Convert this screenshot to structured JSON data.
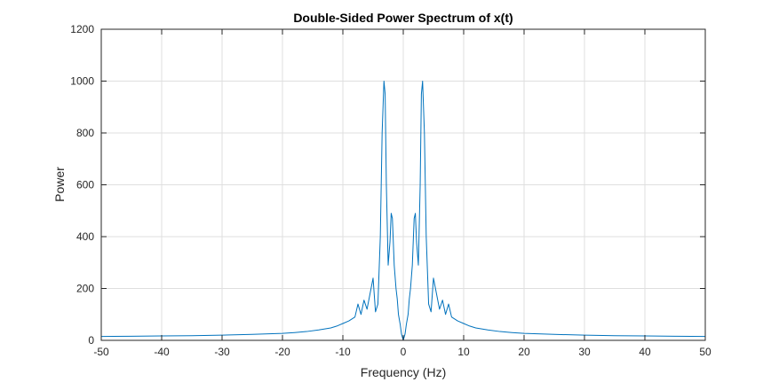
{
  "chart_data": {
    "type": "line",
    "title": "Double-Sided Power Spectrum of x(t)",
    "xlabel": "Frequency (Hz)",
    "ylabel": "Power",
    "xlim": [
      -50,
      50
    ],
    "ylim": [
      0,
      1200
    ],
    "xticks": [
      -50,
      -40,
      -30,
      -20,
      -10,
      0,
      10,
      20,
      30,
      40,
      50
    ],
    "yticks": [
      0,
      200,
      400,
      600,
      800,
      1000,
      1200
    ],
    "grid": true,
    "series": [
      {
        "color": "#0072BD",
        "x": [
          -50,
          -45,
          -40,
          -35,
          -30,
          -25,
          -20,
          -18,
          -16,
          -14,
          -12,
          -11,
          -10,
          -9,
          -8,
          -7.5,
          -7,
          -6.5,
          -6,
          -5.5,
          -5,
          -4.6,
          -4.2,
          -3.8,
          -3.5,
          -3.2,
          -3.0,
          -2.8,
          -2.5,
          -2.2,
          -2.0,
          -1.8,
          -1.5,
          -1.2,
          -1.0,
          -0.8,
          -0.5,
          -0.3,
          0,
          0.3,
          0.5,
          0.8,
          1.0,
          1.2,
          1.5,
          1.8,
          2.0,
          2.2,
          2.5,
          2.8,
          3.0,
          3.2,
          3.5,
          3.8,
          4.2,
          4.6,
          5,
          5.5,
          6,
          6.5,
          7,
          7.5,
          8,
          9,
          10,
          11,
          12,
          14,
          16,
          18,
          20,
          25,
          30,
          35,
          40,
          45,
          50
        ],
        "y": [
          15,
          16,
          17,
          18,
          20,
          23,
          27,
          30,
          34,
          40,
          48,
          55,
          65,
          75,
          90,
          140,
          100,
          155,
          120,
          180,
          240,
          110,
          140,
          400,
          800,
          1000,
          950,
          600,
          290,
          380,
          490,
          470,
          290,
          200,
          160,
          100,
          60,
          25,
          0,
          25,
          60,
          100,
          160,
          200,
          290,
          470,
          490,
          380,
          290,
          600,
          950,
          1000,
          800,
          400,
          140,
          110,
          240,
          180,
          120,
          155,
          100,
          140,
          90,
          75,
          65,
          55,
          48,
          40,
          34,
          30,
          27,
          23,
          20,
          18,
          17,
          16,
          15
        ]
      }
    ]
  }
}
